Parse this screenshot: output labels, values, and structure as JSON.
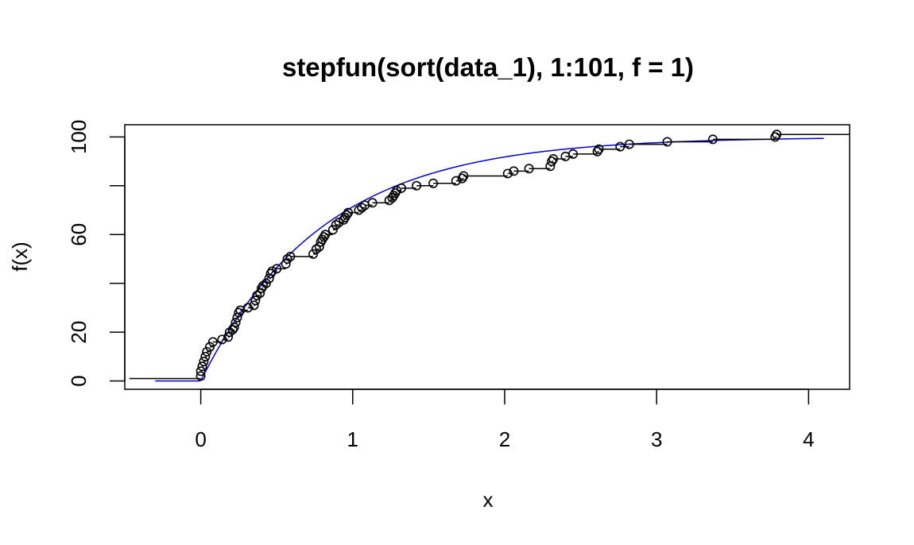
{
  "chart_data": {
    "type": "line",
    "title": "stepfun(sort(data_1), 1:101, f = 1)",
    "xlabel": "x",
    "ylabel": "f(x)",
    "xlim": [
      -0.5,
      4.27
    ],
    "ylim": [
      -3.4,
      105
    ],
    "x_ticks": [
      0,
      1,
      2,
      3,
      4
    ],
    "y_ticks": [
      0,
      20,
      40,
      60,
      80,
      100
    ],
    "y_tick_labels": [
      "0",
      "20",
      "",
      "60",
      "",
      "100"
    ],
    "grid": false,
    "legend": "none",
    "colors": {
      "step": "#000000",
      "curve": "#0000cc",
      "frame": "#000000"
    },
    "series": [
      {
        "kind": "step",
        "points": [
          [
            0.0,
            2
          ],
          [
            0.0,
            4
          ],
          [
            0.01,
            6
          ],
          [
            0.02,
            8
          ],
          [
            0.03,
            10
          ],
          [
            0.04,
            12
          ],
          [
            0.06,
            14
          ],
          [
            0.08,
            16
          ],
          [
            0.14,
            17
          ],
          [
            0.18,
            18
          ],
          [
            0.19,
            20
          ],
          [
            0.21,
            21
          ],
          [
            0.22,
            22
          ],
          [
            0.23,
            24
          ],
          [
            0.24,
            26
          ],
          [
            0.25,
            28
          ],
          [
            0.26,
            29
          ],
          [
            0.31,
            30
          ],
          [
            0.35,
            31
          ],
          [
            0.36,
            33
          ],
          [
            0.37,
            35
          ],
          [
            0.39,
            36
          ],
          [
            0.4,
            38
          ],
          [
            0.41,
            39
          ],
          [
            0.43,
            40
          ],
          [
            0.45,
            42
          ],
          [
            0.46,
            44
          ],
          [
            0.47,
            45
          ],
          [
            0.5,
            46
          ],
          [
            0.56,
            48
          ],
          [
            0.57,
            50
          ],
          [
            0.59,
            51
          ],
          [
            0.74,
            52
          ],
          [
            0.76,
            54
          ],
          [
            0.78,
            55
          ],
          [
            0.79,
            57
          ],
          [
            0.8,
            58
          ],
          [
            0.81,
            59
          ],
          [
            0.82,
            60
          ],
          [
            0.87,
            62
          ],
          [
            0.89,
            64
          ],
          [
            0.91,
            65
          ],
          [
            0.94,
            66
          ],
          [
            0.95,
            67
          ],
          [
            0.96,
            68
          ],
          [
            0.97,
            69
          ],
          [
            1.04,
            70
          ],
          [
            1.06,
            71
          ],
          [
            1.08,
            72
          ],
          [
            1.13,
            73
          ],
          [
            1.24,
            74
          ],
          [
            1.26,
            75
          ],
          [
            1.27,
            76
          ],
          [
            1.28,
            77
          ],
          [
            1.29,
            78
          ],
          [
            1.32,
            79
          ],
          [
            1.42,
            80
          ],
          [
            1.53,
            81
          ],
          [
            1.68,
            82
          ],
          [
            1.72,
            83
          ],
          [
            1.73,
            84
          ],
          [
            2.02,
            85
          ],
          [
            2.06,
            86
          ],
          [
            2.16,
            87
          ],
          [
            2.3,
            88
          ],
          [
            2.31,
            90
          ],
          [
            2.32,
            91
          ],
          [
            2.4,
            92
          ],
          [
            2.45,
            93
          ],
          [
            2.61,
            94
          ],
          [
            2.62,
            95
          ],
          [
            2.76,
            96
          ],
          [
            2.82,
            97
          ],
          [
            3.07,
            98
          ],
          [
            3.37,
            99
          ],
          [
            3.78,
            100
          ],
          [
            3.79,
            101
          ]
        ],
        "left_start": -0.47,
        "right_end": 4.27
      },
      {
        "kind": "curve",
        "function": "100*(1-exp(-x/0.8))",
        "x_range": [
          -0.3,
          4.1
        ]
      }
    ]
  }
}
